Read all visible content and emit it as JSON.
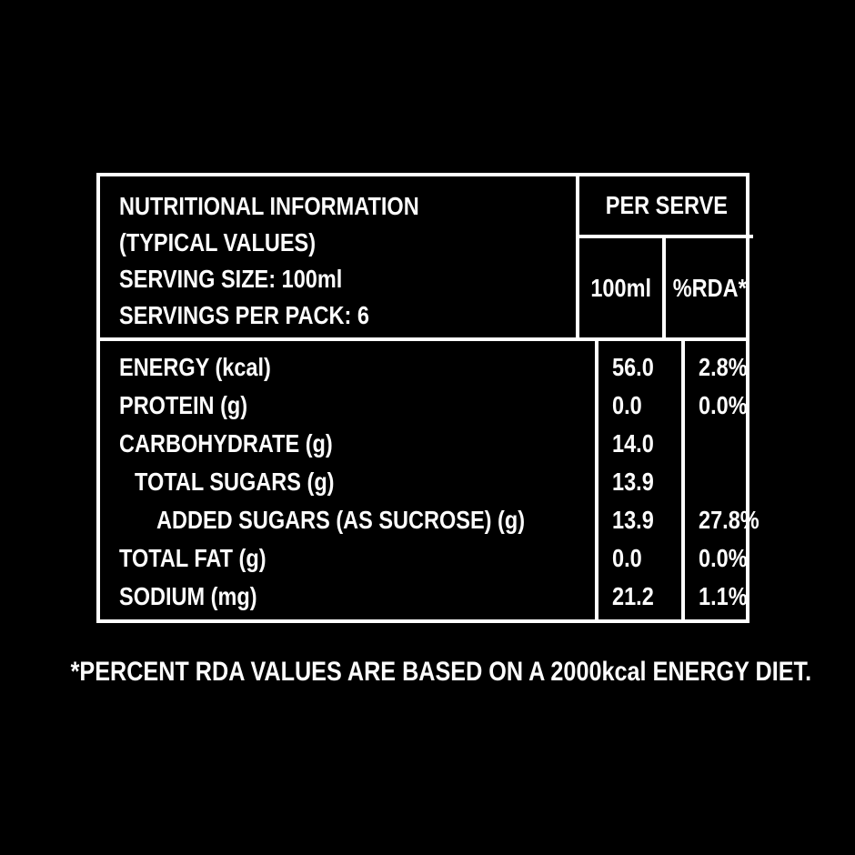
{
  "colors": {
    "background": "#000000",
    "text": "#ffffff",
    "border": "#ffffff"
  },
  "table": {
    "header": {
      "title_line1": "NUTRITIONAL INFORMATION",
      "title_line2": "(TYPICAL VALUES)",
      "serving_size": "SERVING SIZE: 100ml",
      "servings_per_pack": "SERVINGS PER PACK: 6",
      "per_serve_label": "PER SERVE",
      "col_amount": "100ml",
      "col_rda": "%RDA*"
    },
    "rows": [
      {
        "label": "ENERGY (kcal)",
        "amount": "56.0",
        "rda": "2.8%"
      },
      {
        "label": "PROTEIN (g)",
        "amount": "0.0",
        "rda": "0.0%"
      },
      {
        "label": "CARBOHYDRATE (g)",
        "amount": "14.0",
        "rda": ""
      },
      {
        "label": "TOTAL SUGARS (g)",
        "amount": "13.9",
        "rda": ""
      },
      {
        "label": "ADDED SUGARS (AS SUCROSE) (g)",
        "amount": "13.9",
        "rda": "27.8%"
      },
      {
        "label": "TOTAL FAT (g)",
        "amount": "0.0",
        "rda": "0.0%"
      },
      {
        "label": "SODIUM (mg)",
        "amount": "21.2",
        "rda": "1.1%"
      }
    ]
  },
  "footnote": "*PERCENT RDA VALUES ARE BASED ON A 2000kcal ENERGY DIET."
}
